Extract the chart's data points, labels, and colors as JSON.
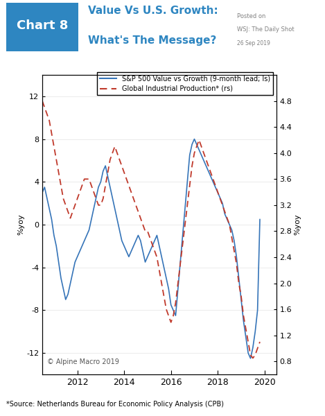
{
  "title_chart": "Chart 8",
  "title_main_line1": "Value Vs U.S. Growth:",
  "title_main_line2": "What's The Message?",
  "posted_on": "Posted on\nWSJ: The Daily Shot\n26 Sep 2019",
  "ylabel_left": "%yoy",
  "ylabel_right": "%yoy",
  "ylim_left": [
    -14,
    14
  ],
  "ylim_right": [
    0.6,
    5.2
  ],
  "yticks_left": [
    -12,
    -8,
    -4,
    0,
    4,
    8,
    12
  ],
  "yticks_right": [
    0.8,
    1.2,
    1.6,
    2.0,
    2.4,
    2.8,
    3.2,
    3.6,
    4.0,
    4.4,
    4.8
  ],
  "xlim": [
    2010.5,
    2020.5
  ],
  "xticks": [
    2012,
    2014,
    2016,
    2018,
    2020
  ],
  "legend_line1": "S&P 500 Value vs Growth (9-month lead; ls)",
  "legend_line2": "Global Industrial Production* (rs)",
  "source_text": "*Source: Netherlands Bureau for Economic Policy Analysis (CPB)",
  "copyright_text": "© Alpine Macro 2019",
  "blue_color": "#3574B8",
  "red_color": "#C0392B",
  "header_bg": "#2E86C1",
  "header_text": "#FFFFFF",
  "background_color": "#FFFFFF",
  "blue_series_x": [
    2010.5,
    2010.6,
    2010.7,
    2010.8,
    2010.9,
    2011.0,
    2011.1,
    2011.2,
    2011.3,
    2011.4,
    2011.5,
    2011.6,
    2011.7,
    2011.8,
    2011.9,
    2012.0,
    2012.1,
    2012.2,
    2012.3,
    2012.4,
    2012.5,
    2012.6,
    2012.7,
    2012.8,
    2012.9,
    2013.0,
    2013.1,
    2013.2,
    2013.3,
    2013.4,
    2013.5,
    2013.6,
    2013.7,
    2013.8,
    2013.9,
    2014.0,
    2014.1,
    2014.2,
    2014.3,
    2014.4,
    2014.5,
    2014.6,
    2014.7,
    2014.8,
    2014.9,
    2015.0,
    2015.1,
    2015.2,
    2015.3,
    2015.4,
    2015.5,
    2015.6,
    2015.7,
    2015.8,
    2015.9,
    2016.0,
    2016.1,
    2016.2,
    2016.3,
    2016.4,
    2016.5,
    2016.6,
    2016.7,
    2016.8,
    2016.9,
    2017.0,
    2017.1,
    2017.2,
    2017.3,
    2017.4,
    2017.5,
    2017.6,
    2017.7,
    2017.8,
    2017.9,
    2018.0,
    2018.1,
    2018.2,
    2018.3,
    2018.4,
    2018.5,
    2018.6,
    2018.7,
    2018.8,
    2018.9,
    2019.0,
    2019.1,
    2019.2,
    2019.3,
    2019.4,
    2019.5,
    2019.6,
    2019.7,
    2019.8
  ],
  "blue_series_y": [
    3.0,
    3.5,
    2.5,
    1.5,
    0.5,
    -1.0,
    -2.0,
    -3.5,
    -5.0,
    -6.0,
    -7.0,
    -6.5,
    -5.5,
    -4.5,
    -3.5,
    -3.0,
    -2.5,
    -2.0,
    -1.5,
    -1.0,
    -0.5,
    0.5,
    1.5,
    2.5,
    3.5,
    4.0,
    5.0,
    5.5,
    4.5,
    3.5,
    2.5,
    1.5,
    0.5,
    -0.5,
    -1.5,
    -2.0,
    -2.5,
    -3.0,
    -2.5,
    -2.0,
    -1.5,
    -1.0,
    -1.5,
    -2.5,
    -3.5,
    -3.0,
    -2.5,
    -2.0,
    -1.5,
    -1.0,
    -2.0,
    -3.0,
    -4.0,
    -5.0,
    -6.0,
    -7.5,
    -8.0,
    -8.5,
    -6.0,
    -3.5,
    -1.0,
    1.5,
    4.0,
    6.5,
    7.5,
    8.0,
    7.5,
    7.0,
    6.5,
    6.0,
    5.5,
    5.0,
    4.5,
    4.0,
    3.5,
    3.0,
    2.5,
    2.0,
    1.0,
    0.5,
    0.0,
    -0.5,
    -1.5,
    -3.0,
    -5.0,
    -7.0,
    -9.0,
    -10.5,
    -12.0,
    -12.5,
    -11.5,
    -10.0,
    -8.0,
    0.5
  ],
  "red_series_x": [
    2010.5,
    2010.6,
    2010.7,
    2010.8,
    2010.9,
    2011.0,
    2011.1,
    2011.2,
    2011.3,
    2011.4,
    2011.5,
    2011.6,
    2011.7,
    2011.8,
    2011.9,
    2012.0,
    2012.1,
    2012.2,
    2012.3,
    2012.4,
    2012.5,
    2012.6,
    2012.7,
    2012.8,
    2012.9,
    2013.0,
    2013.1,
    2013.2,
    2013.3,
    2013.4,
    2013.5,
    2013.6,
    2013.7,
    2013.8,
    2013.9,
    2014.0,
    2014.1,
    2014.2,
    2014.3,
    2014.4,
    2014.5,
    2014.6,
    2014.7,
    2014.8,
    2014.9,
    2015.0,
    2015.1,
    2015.2,
    2015.3,
    2015.4,
    2015.5,
    2015.6,
    2015.7,
    2015.8,
    2015.9,
    2016.0,
    2016.1,
    2016.2,
    2016.3,
    2016.4,
    2016.5,
    2016.6,
    2016.7,
    2016.8,
    2016.9,
    2017.0,
    2017.1,
    2017.2,
    2017.3,
    2017.4,
    2017.5,
    2017.6,
    2017.7,
    2017.8,
    2017.9,
    2018.0,
    2018.1,
    2018.2,
    2018.3,
    2018.4,
    2018.5,
    2018.6,
    2018.7,
    2018.8,
    2018.9,
    2019.0,
    2019.1,
    2019.2,
    2019.3,
    2019.4,
    2019.5,
    2019.6,
    2019.7,
    2019.8
  ],
  "red_series_y": [
    4.8,
    4.7,
    4.6,
    4.5,
    4.3,
    4.1,
    3.9,
    3.7,
    3.5,
    3.3,
    3.2,
    3.1,
    3.0,
    3.1,
    3.2,
    3.3,
    3.4,
    3.5,
    3.6,
    3.6,
    3.6,
    3.5,
    3.4,
    3.3,
    3.2,
    3.2,
    3.3,
    3.5,
    3.7,
    3.9,
    4.0,
    4.1,
    4.0,
    3.9,
    3.8,
    3.7,
    3.6,
    3.5,
    3.4,
    3.3,
    3.2,
    3.1,
    3.0,
    2.9,
    2.8,
    2.8,
    2.7,
    2.6,
    2.5,
    2.4,
    2.2,
    2.0,
    1.8,
    1.6,
    1.5,
    1.4,
    1.5,
    1.7,
    2.0,
    2.3,
    2.6,
    2.9,
    3.2,
    3.5,
    3.8,
    4.0,
    4.1,
    4.2,
    4.1,
    4.0,
    3.9,
    3.8,
    3.7,
    3.6,
    3.5,
    3.4,
    3.3,
    3.2,
    3.1,
    3.0,
    2.9,
    2.7,
    2.5,
    2.3,
    2.0,
    1.8,
    1.5,
    1.3,
    1.1,
    0.9,
    0.85,
    0.9,
    1.0,
    1.1
  ]
}
